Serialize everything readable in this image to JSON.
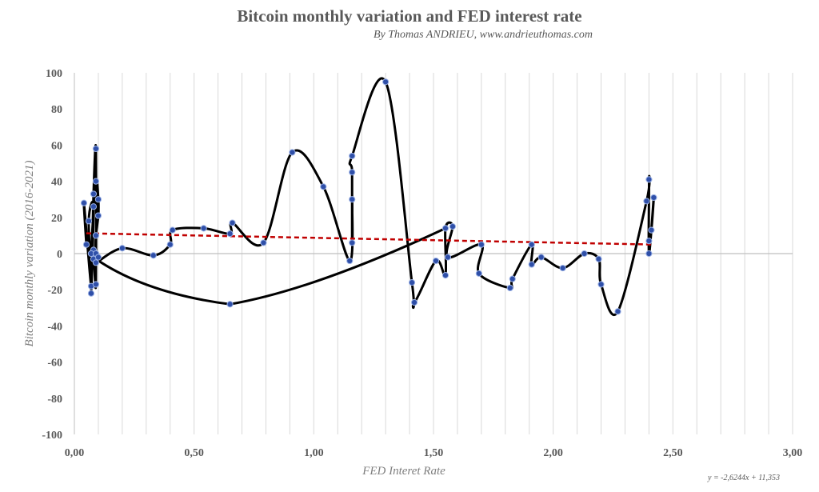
{
  "chart_data": {
    "type": "scatter",
    "title": "Bitcoin monthly variation and FED interest rate",
    "subtitle": "By Thomas ANDRIEU, www.andrieuthomas.com",
    "xlabel": "FED Interet Rate",
    "ylabel": "Bitcoin monthly variation (2016-2021)",
    "xlim": [
      0,
      3
    ],
    "ylim": [
      -100,
      100
    ],
    "x_ticks": [
      "0,00",
      "0,50",
      "1,00",
      "1,50",
      "2,00",
      "2,50",
      "3,00"
    ],
    "y_ticks": [
      "100",
      "80",
      "60",
      "40",
      "20",
      "0",
      "-20",
      "-40",
      "-60",
      "-80",
      "-100"
    ],
    "grid": "vertical",
    "trendline": {
      "equation": "y = -2,6244x + 11,353",
      "slope": -2.6244,
      "intercept": 11.353,
      "x_range": [
        0.05,
        2.42
      ],
      "color": "#c00000"
    },
    "line_color": "#000000",
    "marker_color": "#2f4fa8",
    "points": [
      [
        0.05,
        5
      ],
      [
        0.04,
        28
      ],
      [
        0.07,
        -18
      ],
      [
        0.06,
        18
      ],
      [
        0.08,
        26
      ],
      [
        0.07,
        -22
      ],
      [
        0.08,
        33
      ],
      [
        0.09,
        58
      ],
      [
        0.09,
        -17
      ],
      [
        0.08,
        2
      ],
      [
        0.08,
        -3
      ],
      [
        0.07,
        0
      ],
      [
        0.09,
        40
      ],
      [
        0.1,
        30
      ],
      [
        0.1,
        21
      ],
      [
        0.09,
        10
      ],
      [
        0.09,
        0
      ],
      [
        0.1,
        -2
      ],
      [
        0.09,
        -5
      ],
      [
        0.2,
        3
      ],
      [
        0.33,
        -1
      ],
      [
        0.4,
        5
      ],
      [
        0.41,
        13
      ],
      [
        0.54,
        14
      ],
      [
        0.65,
        11
      ],
      [
        0.66,
        17
      ],
      [
        0.79,
        6
      ],
      [
        0.91,
        56
      ],
      [
        1.04,
        37
      ],
      [
        1.15,
        -4
      ],
      [
        1.16,
        30
      ],
      [
        1.16,
        6
      ],
      [
        1.16,
        45
      ],
      [
        1.16,
        54
      ],
      [
        1.3,
        95
      ],
      [
        1.41,
        -16
      ],
      [
        1.42,
        -27
      ],
      [
        1.51,
        -4
      ],
      [
        1.55,
        -12
      ],
      [
        1.55,
        14
      ],
      [
        1.58,
        15
      ],
      [
        1.56,
        -2
      ],
      [
        1.7,
        5
      ],
      [
        1.69,
        -11
      ],
      [
        1.82,
        -19
      ],
      [
        1.83,
        -14
      ],
      [
        1.91,
        5
      ],
      [
        1.91,
        -6
      ],
      [
        1.95,
        -2
      ],
      [
        2.04,
        -8
      ],
      [
        2.13,
        0
      ],
      [
        2.19,
        -3
      ],
      [
        2.2,
        -17
      ],
      [
        2.27,
        -32
      ],
      [
        2.39,
        29
      ],
      [
        2.4,
        41
      ],
      [
        2.4,
        0
      ],
      [
        2.42,
        31
      ],
      [
        2.41,
        13
      ],
      [
        2.4,
        7
      ],
      [
        0.65,
        -28
      ]
    ],
    "path": [
      [
        0.05,
        5
      ],
      [
        0.04,
        28
      ],
      [
        0.07,
        -18
      ],
      [
        0.06,
        18
      ],
      [
        0.08,
        26
      ],
      [
        0.07,
        -22
      ],
      [
        0.08,
        33
      ],
      [
        0.09,
        58
      ],
      [
        0.09,
        -17
      ],
      [
        0.08,
        2
      ],
      [
        0.08,
        -3
      ],
      [
        0.07,
        0
      ],
      [
        0.09,
        40
      ],
      [
        0.1,
        30
      ],
      [
        0.1,
        21
      ],
      [
        0.09,
        10
      ],
      [
        0.09,
        0
      ],
      [
        0.1,
        -2
      ],
      [
        0.09,
        -5
      ],
      [
        0.2,
        3
      ],
      [
        0.33,
        -1
      ],
      [
        0.4,
        5
      ],
      [
        0.41,
        13
      ],
      [
        0.54,
        14
      ],
      [
        0.65,
        11
      ],
      [
        0.66,
        17
      ],
      [
        0.79,
        6
      ],
      [
        0.91,
        56
      ],
      [
        1.04,
        37
      ],
      [
        1.15,
        -4
      ],
      [
        1.16,
        30
      ],
      [
        1.16,
        6
      ],
      [
        1.16,
        45
      ],
      [
        1.16,
        54
      ],
      [
        1.3,
        95
      ],
      [
        1.41,
        -16
      ],
      [
        1.42,
        -27
      ],
      [
        1.51,
        -4
      ],
      [
        1.55,
        -12
      ],
      [
        1.55,
        14
      ],
      [
        1.58,
        15
      ],
      [
        1.56,
        -2
      ],
      [
        1.7,
        5
      ],
      [
        1.69,
        -11
      ],
      [
        1.82,
        -19
      ],
      [
        1.83,
        -14
      ],
      [
        1.91,
        5
      ],
      [
        1.91,
        -6
      ],
      [
        1.95,
        -2
      ],
      [
        2.04,
        -8
      ],
      [
        2.13,
        0
      ],
      [
        2.19,
        -3
      ],
      [
        2.2,
        -17
      ],
      [
        2.27,
        -32
      ],
      [
        2.39,
        29
      ],
      [
        2.4,
        41
      ],
      [
        2.4,
        0
      ],
      [
        2.42,
        31
      ],
      [
        2.41,
        13
      ],
      [
        2.4,
        7
      ]
    ]
  }
}
